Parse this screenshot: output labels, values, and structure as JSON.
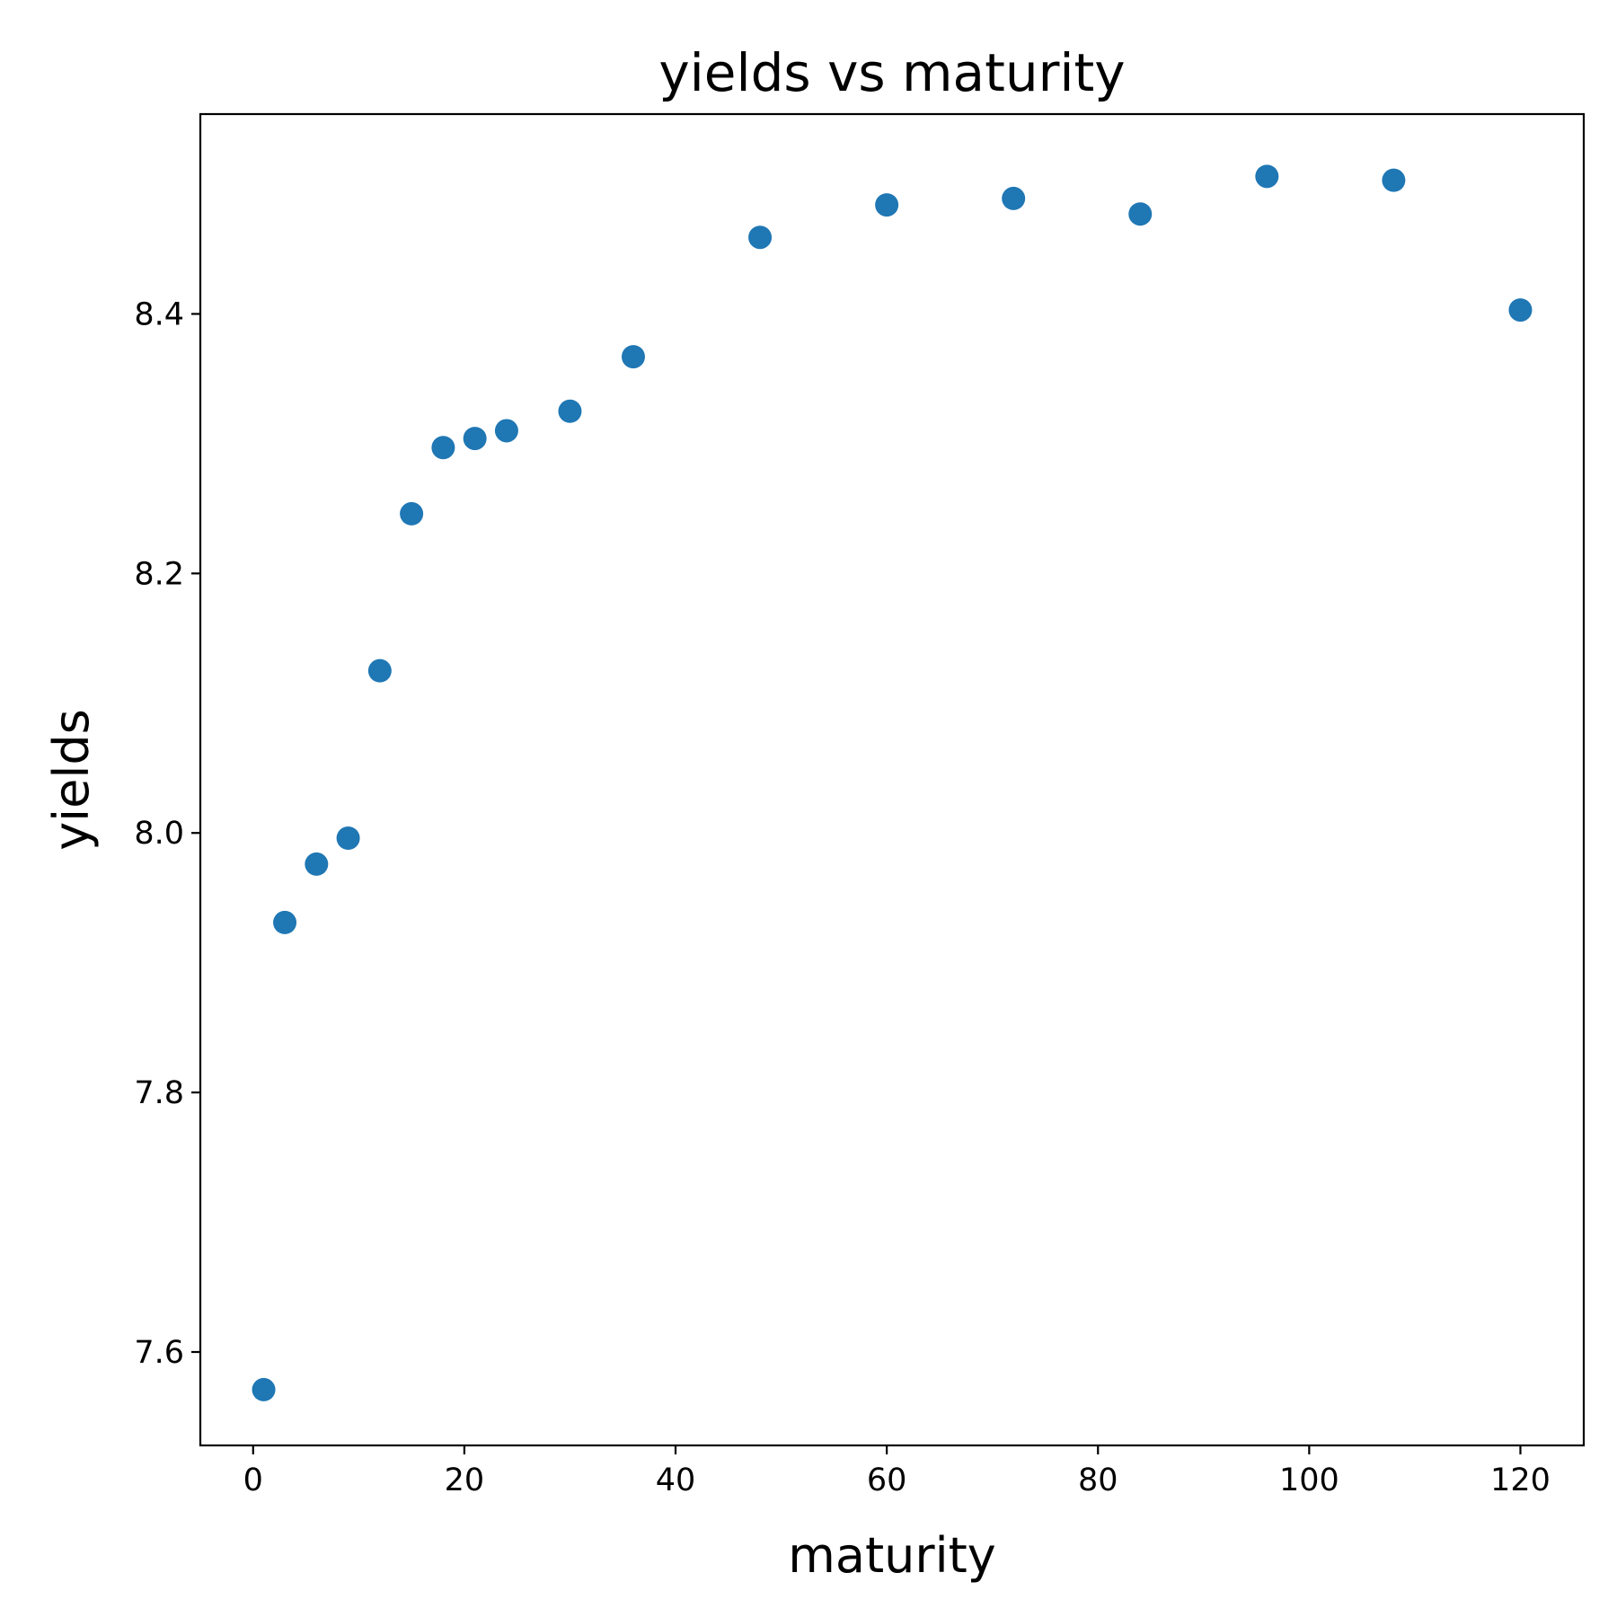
{
  "chart_data": {
    "type": "scatter",
    "title": "yields vs maturity",
    "xlabel": "maturity",
    "ylabel": "yields",
    "xlim": [
      -5,
      126
    ],
    "ylim": [
      7.528,
      8.554
    ],
    "xticks": [
      0,
      20,
      40,
      60,
      80,
      100,
      120
    ],
    "yticks": [
      7.6,
      7.8,
      8.0,
      8.2,
      8.4
    ],
    "x_tick_labels": [
      "0",
      "20",
      "40",
      "60",
      "80",
      "100",
      "120"
    ],
    "y_tick_labels": [
      "7.6",
      "7.8",
      "8.0",
      "8.2",
      "8.4"
    ],
    "grid": false,
    "marker_color": "#1f77b4",
    "series": [
      {
        "x": [
          1,
          3,
          6,
          9,
          12,
          15,
          18,
          21,
          24,
          30,
          36,
          48,
          60,
          72,
          84,
          96,
          108,
          120
        ],
        "y": [
          7.571,
          7.931,
          7.976,
          7.996,
          8.125,
          8.246,
          8.297,
          8.304,
          8.31,
          8.325,
          8.367,
          8.459,
          8.484,
          8.489,
          8.477,
          8.506,
          8.503,
          8.403
        ]
      }
    ]
  }
}
